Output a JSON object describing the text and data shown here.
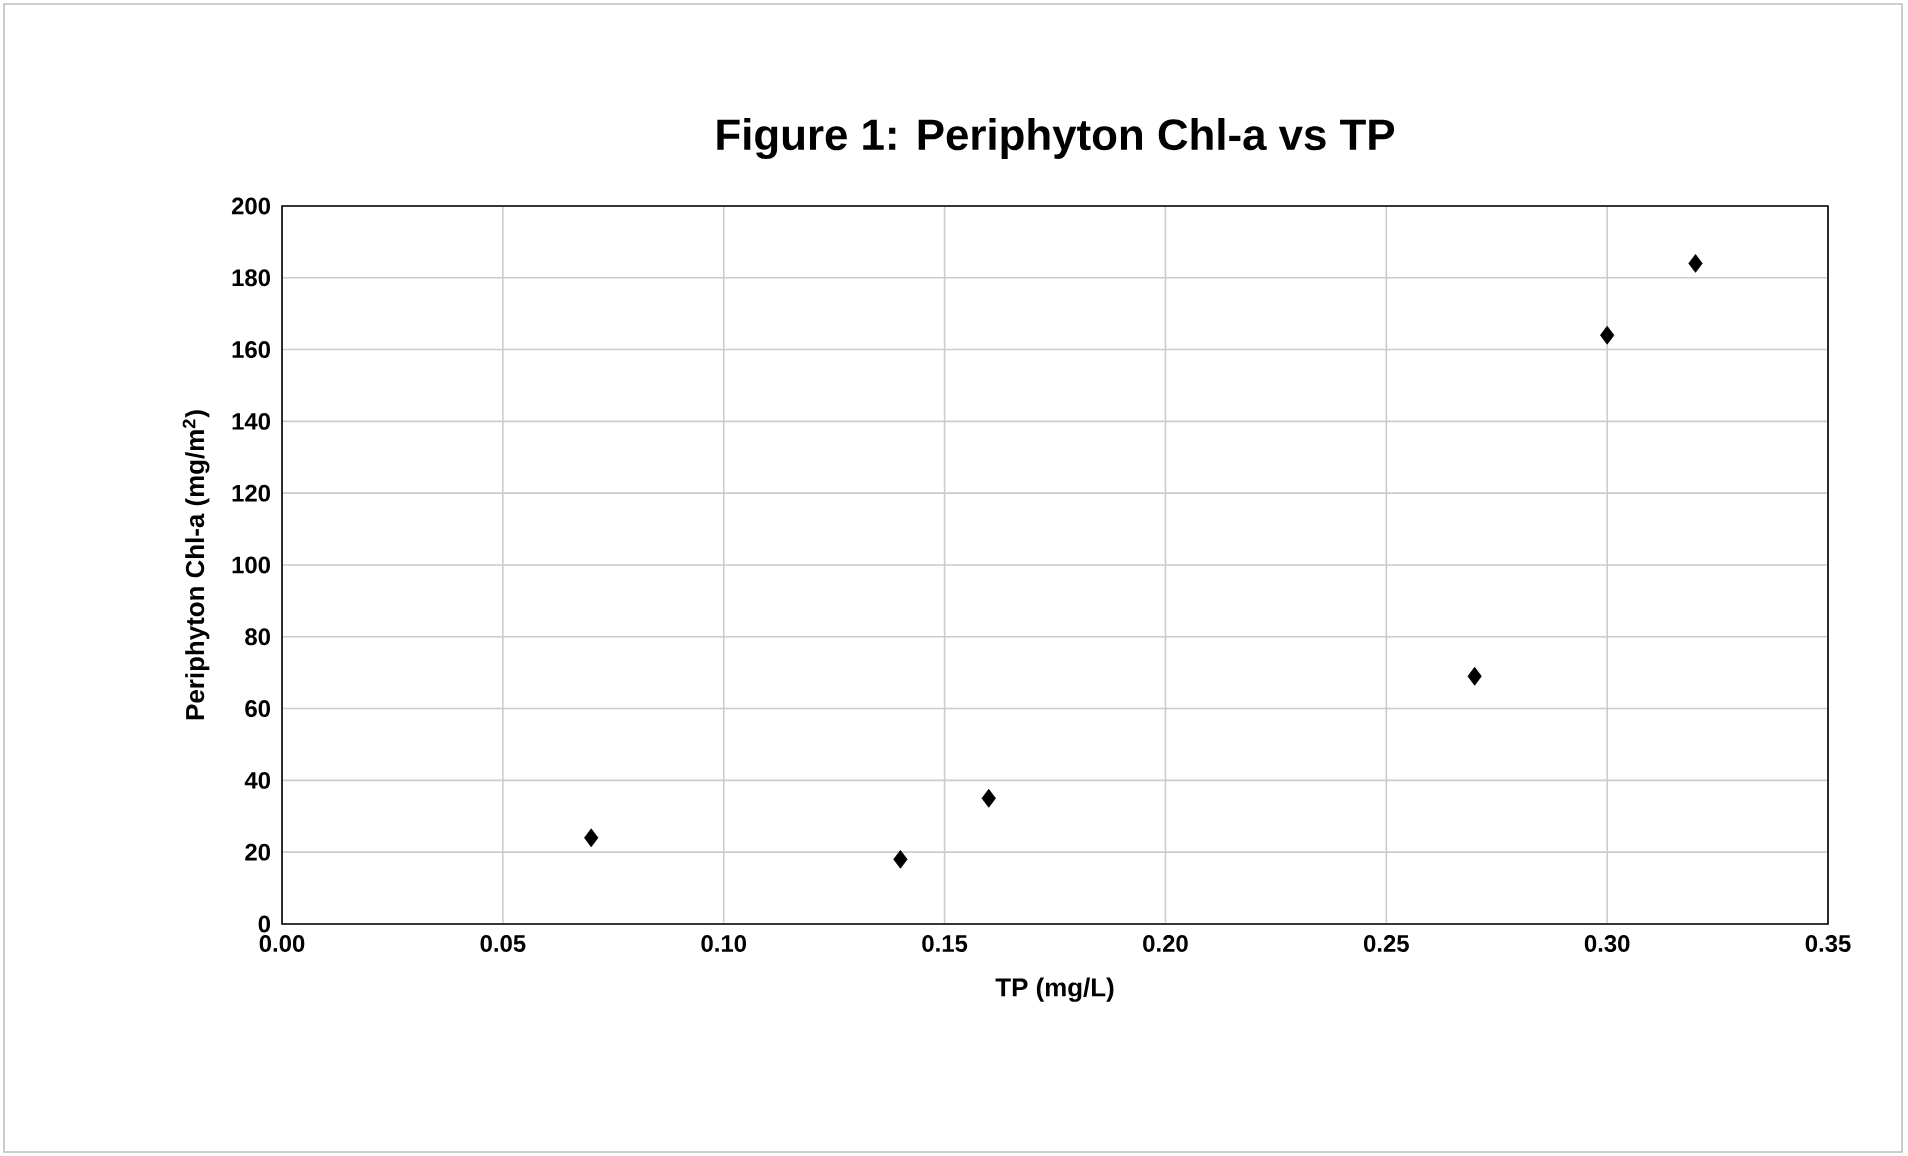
{
  "chart_data": {
    "type": "scatter",
    "title": "Figure 1: Periphyton Chl-a vs TP",
    "xlabel": "TP (mg/L)",
    "ylabel": "Periphyton Chl-a  (mg/m$^{2}$)",
    "x": [
      0.07,
      0.14,
      0.16,
      0.27,
      0.3,
      0.32
    ],
    "series": [
      {
        "color": "#000000",
        "values": [
          24,
          18,
          35,
          69,
          164,
          184
        ]
      }
    ],
    "xlim": [
      0,
      0.35
    ],
    "xticks": [
      {
        "value": 0,
        "label": "0.00"
      },
      {
        "value": 0.05,
        "label": "0.05"
      },
      {
        "value": 0.1,
        "label": "0.10"
      },
      {
        "value": 0.15,
        "label": "0.15"
      },
      {
        "value": 0.2,
        "label": "0.20"
      },
      {
        "value": 0.25,
        "label": "0.25"
      },
      {
        "value": 0.3,
        "label": "0.30"
      },
      {
        "value": 0.35,
        "label": "0.35"
      }
    ],
    "ylim": [
      0,
      200
    ],
    "yticks": [
      0,
      20,
      40,
      60,
      80,
      100,
      120,
      140,
      160,
      180,
      200
    ],
    "grid": true,
    "marker": "diamond"
  }
}
